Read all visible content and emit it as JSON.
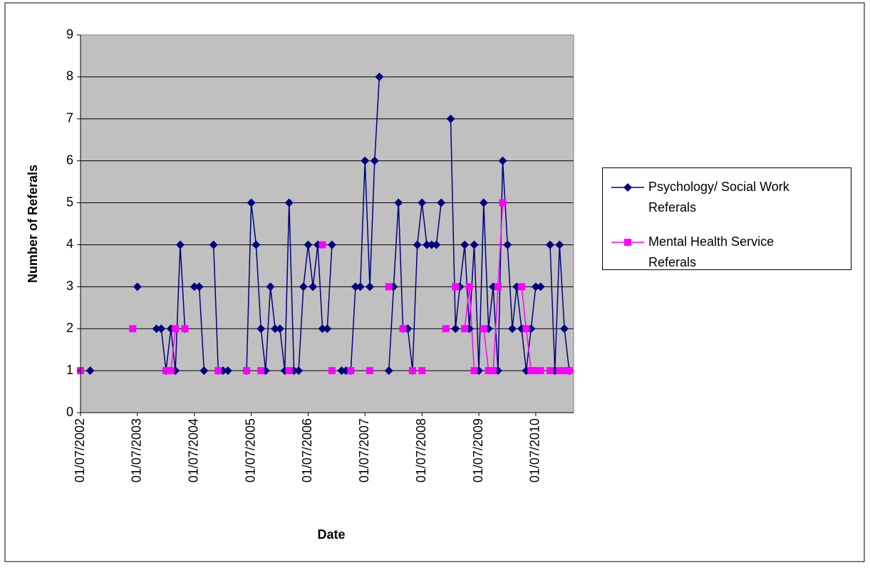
{
  "chart_data": {
    "type": "line",
    "y_label": "Number of Referals",
    "x_label": "Date",
    "x": [
      "2002-07-01",
      "2002-08-01",
      "2002-09-01",
      "2002-10-01",
      "2002-11-01",
      "2002-12-01",
      "2003-01-01",
      "2003-02-01",
      "2003-03-01",
      "2003-04-01",
      "2003-05-01",
      "2003-06-01",
      "2003-07-01",
      "2003-08-01",
      "2003-09-01",
      "2003-10-01",
      "2003-11-01",
      "2003-12-01",
      "2004-01-01",
      "2004-02-01",
      "2004-03-01",
      "2004-04-01",
      "2004-05-01",
      "2004-06-01",
      "2004-07-01",
      "2004-08-01",
      "2004-09-01",
      "2004-10-01",
      "2004-11-01",
      "2004-12-01",
      "2005-01-01",
      "2005-02-01",
      "2005-03-01",
      "2005-04-01",
      "2005-05-01",
      "2005-06-01",
      "2005-07-01",
      "2005-08-01",
      "2005-09-01",
      "2005-10-01",
      "2005-11-01",
      "2005-12-01",
      "2006-01-01",
      "2006-02-01",
      "2006-03-01",
      "2006-04-01",
      "2006-05-01",
      "2006-06-01",
      "2006-07-01",
      "2006-08-01",
      "2006-09-01",
      "2006-10-01",
      "2006-11-01",
      "2006-12-01",
      "2007-01-01",
      "2007-02-01",
      "2007-03-01",
      "2007-04-01",
      "2007-05-01",
      "2007-06-01",
      "2007-07-01",
      "2007-08-01",
      "2007-09-01",
      "2007-10-01",
      "2007-11-01",
      "2007-12-01",
      "2008-01-01",
      "2008-02-01",
      "2008-03-01",
      "2008-04-01",
      "2008-05-01",
      "2008-06-01",
      "2008-07-01",
      "2008-08-01",
      "2008-09-01",
      "2008-10-01",
      "2008-11-01",
      "2008-12-01",
      "2009-01-01",
      "2009-02-01",
      "2009-03-01",
      "2009-04-01",
      "2009-05-01",
      "2009-06-01",
      "2009-07-01",
      "2009-08-01",
      "2009-09-01",
      "2009-10-01",
      "2009-11-01",
      "2009-12-01",
      "2010-01-01",
      "2010-02-01",
      "2010-03-01",
      "2010-04-01",
      "2010-05-01",
      "2010-06-01",
      "2010-07-01",
      "2010-08-01",
      "2010-09-01",
      "2010-10-01",
      "2010-11-01",
      "2010-12-01",
      "2011-01-01",
      "2011-02-01"
    ],
    "series": [
      {
        "name": "Psychology/ Social Work Referals",
        "color": "#000080",
        "marker": "diamond",
        "values": [
          null,
          null,
          1,
          null,
          null,
          null,
          null,
          null,
          null,
          null,
          null,
          null,
          3,
          null,
          null,
          null,
          2,
          2,
          1,
          2,
          1,
          4,
          2,
          null,
          3,
          3,
          1,
          null,
          4,
          1,
          1,
          1,
          null,
          null,
          null,
          1,
          5,
          4,
          2,
          1,
          3,
          2,
          2,
          1,
          5,
          1,
          1,
          3,
          4,
          3,
          4,
          2,
          2,
          4,
          null,
          1,
          1,
          1,
          3,
          3,
          6,
          3,
          6,
          8,
          null,
          1,
          3,
          5,
          2,
          2,
          1,
          4,
          5,
          4,
          4,
          4,
          5,
          null,
          7,
          2,
          3,
          4,
          2,
          4,
          1,
          5,
          2,
          3,
          1,
          6,
          4,
          2,
          3,
          2,
          1,
          2,
          3,
          3,
          null,
          4,
          1,
          4,
          2,
          1
        ]
      },
      {
        "name": "Mental Health Service Referals",
        "color": "#ff00ff",
        "marker": "square",
        "values": [
          1,
          null,
          null,
          null,
          null,
          null,
          null,
          null,
          null,
          null,
          null,
          2,
          null,
          null,
          null,
          null,
          null,
          null,
          1,
          1,
          2,
          null,
          2,
          null,
          null,
          null,
          null,
          null,
          null,
          1,
          null,
          null,
          null,
          null,
          null,
          1,
          null,
          null,
          1,
          null,
          null,
          null,
          null,
          null,
          1,
          null,
          null,
          null,
          null,
          null,
          null,
          4,
          null,
          1,
          null,
          null,
          null,
          1,
          null,
          null,
          null,
          1,
          null,
          null,
          null,
          3,
          null,
          null,
          2,
          null,
          1,
          null,
          1,
          null,
          null,
          null,
          null,
          2,
          null,
          3,
          null,
          2,
          3,
          1,
          null,
          2,
          1,
          1,
          3,
          5,
          null,
          null,
          null,
          3,
          2,
          1,
          1,
          1,
          null,
          1,
          null,
          1,
          1,
          1
        ]
      }
    ],
    "xlim": [
      "2002-07-01",
      "2011-03-01"
    ],
    "xticks": [
      {
        "value": "2002-07-01",
        "label": "01/07/2002"
      },
      {
        "value": "2003-07-01",
        "label": "01/07/2003"
      },
      {
        "value": "2004-07-01",
        "label": "01/07/2004"
      },
      {
        "value": "2005-07-01",
        "label": "01/07/2005"
      },
      {
        "value": "2006-07-01",
        "label": "01/07/2006"
      },
      {
        "value": "2007-07-01",
        "label": "01/07/2007"
      },
      {
        "value": "2008-07-01",
        "label": "01/07/2008"
      },
      {
        "value": "2009-07-01",
        "label": "01/07/2009"
      },
      {
        "value": "2010-07-01",
        "label": "01/07/2010"
      }
    ],
    "ylim": [
      0,
      9
    ],
    "yticks": [
      0,
      1,
      2,
      3,
      4,
      5,
      6,
      7,
      8,
      9
    ],
    "grid": true,
    "legend": "right"
  }
}
